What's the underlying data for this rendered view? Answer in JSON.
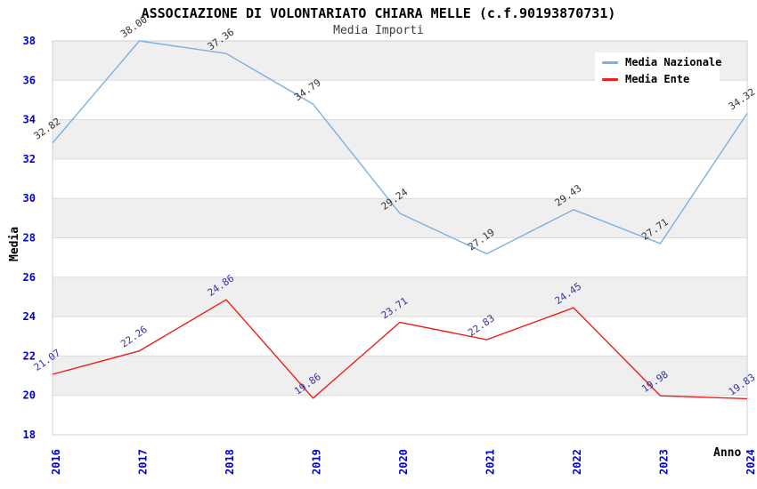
{
  "title": "ASSOCIAZIONE DI VOLONTARIATO CHIARA MELLE (c.f.90193870731)",
  "subtitle": "Media Importi",
  "legend": {
    "items": [
      {
        "label": "Media Nazionale",
        "color": "#7cb0e2"
      },
      {
        "label": "Media Ente",
        "color": "#ee1c1c"
      }
    ]
  },
  "chart_data": {
    "type": "line",
    "title": "ASSOCIAZIONE DI VOLONTARIATO CHIARA MELLE (c.f.90193870731)",
    "subtitle": "Media Importi",
    "categories": [
      "2016",
      "2017",
      "2018",
      "2019",
      "2020",
      "2021",
      "2022",
      "2023",
      "2024"
    ],
    "series": [
      {
        "name": "Media Nazionale",
        "color": "#7cb0e2",
        "label_color": "#333333",
        "values": [
          32.82,
          38.0,
          37.36,
          34.79,
          29.24,
          27.19,
          29.43,
          27.71,
          34.32
        ]
      },
      {
        "name": "Media Ente",
        "color": "#ee1c1c",
        "label_color": "#3333a0",
        "values": [
          21.07,
          22.26,
          24.86,
          19.86,
          23.71,
          22.83,
          24.45,
          19.98,
          19.83
        ]
      }
    ],
    "xlabel": "Anno",
    "ylabel": "Media",
    "ylim": [
      18,
      38
    ],
    "ytick_step": 2,
    "yticks": [
      18,
      20,
      22,
      24,
      26,
      28,
      30,
      32,
      34,
      36,
      38
    ],
    "grid": true,
    "legend_position": "top-right",
    "tick_color": "#0000cc",
    "band_color": "#efefef",
    "grid_color": "#dcdcdc",
    "border_color": "#cfcfcf"
  }
}
